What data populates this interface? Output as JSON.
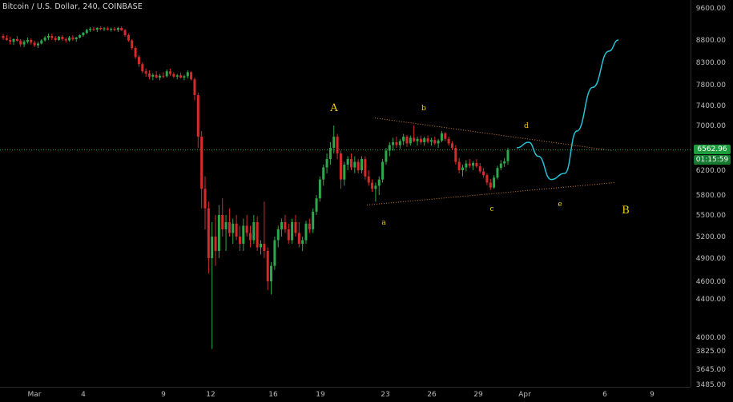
{
  "header": {
    "title": "Bitcoin / U.S. Dollar, 240, COINBASE"
  },
  "price_badges": {
    "last_price": "6562.96",
    "countdown": "01:15:59"
  },
  "colors": {
    "up": "#2ea84a",
    "down": "#d52b2b",
    "price_line": "#2fa84f",
    "projection": "#22c3d6",
    "trendline": "#d07a2e",
    "wave_label": "#f0d000"
  },
  "chart_data": {
    "type": "candlestick",
    "title": "Bitcoin / U.S. Dollar, 240, COINBASE",
    "y_ticks": [
      "9600.00",
      "8800.00",
      "8300.00",
      "7800.00",
      "7400.00",
      "7000.00",
      "6200.00",
      "5800.00",
      "5500.00",
      "5200.00",
      "4900.00",
      "4600.00",
      "4400.00",
      "4000.00",
      "3825.00",
      "3645.00",
      "3485.00"
    ],
    "x_ticks": [
      "Mar",
      "4",
      "9",
      "12",
      "16",
      "19",
      "23",
      "26",
      "29",
      "Apr",
      "6",
      "9"
    ],
    "ylim": [
      3485,
      9600
    ],
    "last_price": 6562.96,
    "wave_labels": [
      "A",
      "b",
      "d",
      "a",
      "c",
      "e",
      "B"
    ],
    "projection": [
      6600,
      6700,
      6450,
      6050,
      6150,
      6900,
      7750,
      8550,
      8800
    ],
    "triangle_upper": {
      "from": 7150,
      "to": 6550
    },
    "triangle_lower": {
      "from": 5650,
      "to": 6000
    },
    "candles": [
      [
        8900,
        8950,
        8800,
        8850
      ],
      [
        8850,
        8920,
        8780,
        8800
      ],
      [
        8800,
        8880,
        8700,
        8760
      ],
      [
        8760,
        8840,
        8690,
        8820
      ],
      [
        8820,
        8900,
        8760,
        8780
      ],
      [
        8780,
        8820,
        8650,
        8700
      ],
      [
        8700,
        8800,
        8640,
        8760
      ],
      [
        8760,
        8860,
        8720,
        8800
      ],
      [
        8800,
        8840,
        8700,
        8740
      ],
      [
        8740,
        8790,
        8640,
        8680
      ],
      [
        8680,
        8760,
        8620,
        8720
      ],
      [
        8720,
        8820,
        8700,
        8790
      ],
      [
        8790,
        8900,
        8760,
        8860
      ],
      [
        8860,
        8960,
        8800,
        8900
      ],
      [
        8900,
        8960,
        8800,
        8850
      ],
      [
        8850,
        8900,
        8760,
        8800
      ],
      [
        8800,
        8900,
        8780,
        8880
      ],
      [
        8880,
        8920,
        8780,
        8820
      ],
      [
        8820,
        8860,
        8740,
        8790
      ],
      [
        8790,
        8900,
        8760,
        8860
      ],
      [
        8860,
        8920,
        8780,
        8820
      ],
      [
        8820,
        8880,
        8760,
        8860
      ],
      [
        8860,
        8940,
        8840,
        8920
      ],
      [
        8920,
        9000,
        8880,
        8980
      ],
      [
        8980,
        9080,
        8940,
        9050
      ],
      [
        9050,
        9120,
        9000,
        9080
      ],
      [
        9080,
        9130,
        9020,
        9060
      ],
      [
        9060,
        9120,
        9000,
        9100
      ],
      [
        9100,
        9140,
        9040,
        9070
      ],
      [
        9070,
        9120,
        9020,
        9090
      ],
      [
        9090,
        9130,
        9040,
        9060
      ],
      [
        9060,
        9110,
        9010,
        9080
      ],
      [
        9080,
        9120,
        9020,
        9050
      ],
      [
        9050,
        9130,
        9000,
        9100
      ],
      [
        9100,
        9140,
        9030,
        9040
      ],
      [
        9040,
        9080,
        8880,
        8920
      ],
      [
        8920,
        8960,
        8760,
        8790
      ],
      [
        8790,
        8820,
        8580,
        8620
      ],
      [
        8620,
        8660,
        8380,
        8420
      ],
      [
        8420,
        8460,
        8200,
        8260
      ],
      [
        8260,
        8300,
        8060,
        8100
      ],
      [
        8100,
        8160,
        7980,
        8050
      ],
      [
        8050,
        8120,
        7920,
        7980
      ],
      [
        7980,
        8060,
        7900,
        8020
      ],
      [
        8020,
        8100,
        7940,
        7960
      ],
      [
        7960,
        8040,
        7900,
        8000
      ],
      [
        8000,
        8080,
        7940,
        7990
      ],
      [
        7990,
        8140,
        7960,
        8100
      ],
      [
        8100,
        8160,
        8000,
        8040
      ],
      [
        8040,
        8080,
        7950,
        7980
      ],
      [
        7980,
        8040,
        7920,
        8010
      ],
      [
        8010,
        8070,
        7940,
        7960
      ],
      [
        7960,
        8020,
        7900,
        7990
      ],
      [
        7990,
        8120,
        7940,
        8080
      ],
      [
        8080,
        8100,
        7900,
        7920
      ],
      [
        7920,
        7960,
        7500,
        7600
      ],
      [
        7600,
        7650,
        6600,
        6800
      ],
      [
        6800,
        6900,
        5600,
        5900
      ],
      [
        5900,
        6100,
        5300,
        5600
      ],
      [
        5600,
        5700,
        4700,
        4900
      ],
      [
        4900,
        5400,
        3850,
        5200
      ],
      [
        5200,
        5500,
        4800,
        5000
      ],
      [
        5000,
        5650,
        4900,
        5500
      ],
      [
        5500,
        5750,
        5200,
        5300
      ],
      [
        5300,
        5500,
        5000,
        5400
      ],
      [
        5400,
        5600,
        5200,
        5250
      ],
      [
        5250,
        5450,
        5100,
        5380
      ],
      [
        5380,
        5500,
        5150,
        5200
      ],
      [
        5200,
        5350,
        5000,
        5100
      ],
      [
        5100,
        5450,
        5000,
        5350
      ],
      [
        5350,
        5500,
        5200,
        5250
      ],
      [
        5250,
        5350,
        5050,
        5150
      ],
      [
        5150,
        5500,
        5100,
        5400
      ],
      [
        5400,
        5480,
        5000,
        5050
      ],
      [
        5050,
        5150,
        4950,
        5100
      ],
      [
        5100,
        5700,
        4900,
        5000
      ],
      [
        5000,
        5050,
        4500,
        4600
      ],
      [
        4600,
        4850,
        4450,
        4800
      ],
      [
        4800,
        5200,
        4750,
        5150
      ],
      [
        5150,
        5350,
        5050,
        5300
      ],
      [
        5300,
        5450,
        5200,
        5400
      ],
      [
        5400,
        5500,
        5250,
        5300
      ],
      [
        5300,
        5380,
        5100,
        5150
      ],
      [
        5150,
        5450,
        5100,
        5400
      ],
      [
        5400,
        5500,
        5200,
        5250
      ],
      [
        5250,
        5400,
        5050,
        5100
      ],
      [
        5100,
        5200,
        5000,
        5150
      ],
      [
        5150,
        5420,
        5100,
        5380
      ],
      [
        5380,
        5450,
        5250,
        5300
      ],
      [
        5300,
        5600,
        5250,
        5550
      ],
      [
        5550,
        5800,
        5500,
        5750
      ],
      [
        5750,
        6100,
        5700,
        6050
      ],
      [
        6050,
        6300,
        5950,
        6250
      ],
      [
        6250,
        6500,
        6150,
        6400
      ],
      [
        6400,
        6700,
        6300,
        6600
      ],
      [
        6600,
        7000,
        6500,
        6800
      ],
      [
        6800,
        6850,
        6400,
        6500
      ],
      [
        6500,
        6550,
        5900,
        6050
      ],
      [
        6050,
        6350,
        5950,
        6300
      ],
      [
        6300,
        6450,
        6200,
        6400
      ],
      [
        6400,
        6500,
        6200,
        6250
      ],
      [
        6250,
        6450,
        6150,
        6350
      ],
      [
        6350,
        6400,
        6150,
        6200
      ],
      [
        6200,
        6450,
        6150,
        6400
      ],
      [
        6400,
        6450,
        6050,
        6100
      ],
      [
        6100,
        6200,
        5950,
        6000
      ],
      [
        6000,
        6050,
        5850,
        5900
      ],
      [
        5900,
        6000,
        5700,
        5950
      ],
      [
        5950,
        6100,
        5800,
        6050
      ],
      [
        6050,
        6400,
        6000,
        6350
      ],
      [
        6350,
        6600,
        6300,
        6550
      ],
      [
        6550,
        6700,
        6450,
        6650
      ],
      [
        6650,
        6780,
        6550,
        6700
      ],
      [
        6700,
        6800,
        6600,
        6650
      ],
      [
        6650,
        6760,
        6580,
        6720
      ],
      [
        6720,
        6850,
        6650,
        6800
      ],
      [
        6800,
        6830,
        6620,
        6680
      ],
      [
        6680,
        6820,
        6640,
        6780
      ],
      [
        6780,
        7000,
        6700,
        6720
      ],
      [
        6720,
        6800,
        6640,
        6760
      ],
      [
        6760,
        6820,
        6660,
        6700
      ],
      [
        6700,
        6800,
        6640,
        6770
      ],
      [
        6770,
        6820,
        6680,
        6710
      ],
      [
        6710,
        6780,
        6640,
        6740
      ],
      [
        6740,
        6800,
        6650,
        6680
      ],
      [
        6680,
        6760,
        6600,
        6730
      ],
      [
        6730,
        6900,
        6700,
        6860
      ],
      [
        6860,
        6880,
        6720,
        6760
      ],
      [
        6760,
        6800,
        6640,
        6680
      ],
      [
        6680,
        6720,
        6560,
        6600
      ],
      [
        6600,
        6650,
        6300,
        6350
      ],
      [
        6350,
        6420,
        6150,
        6200
      ],
      [
        6200,
        6300,
        6100,
        6250
      ],
      [
        6250,
        6380,
        6180,
        6320
      ],
      [
        6320,
        6400,
        6240,
        6280
      ],
      [
        6280,
        6360,
        6200,
        6330
      ],
      [
        6330,
        6400,
        6240,
        6270
      ],
      [
        6270,
        6330,
        6150,
        6180
      ],
      [
        6180,
        6240,
        6080,
        6120
      ],
      [
        6120,
        6150,
        5960,
        6000
      ],
      [
        6000,
        6060,
        5880,
        5920
      ],
      [
        5920,
        6120,
        5900,
        6080
      ],
      [
        6080,
        6280,
        6050,
        6240
      ],
      [
        6240,
        6380,
        6200,
        6320
      ],
      [
        6320,
        6420,
        6260,
        6360
      ],
      [
        6360,
        6600,
        6300,
        6560
      ]
    ]
  }
}
